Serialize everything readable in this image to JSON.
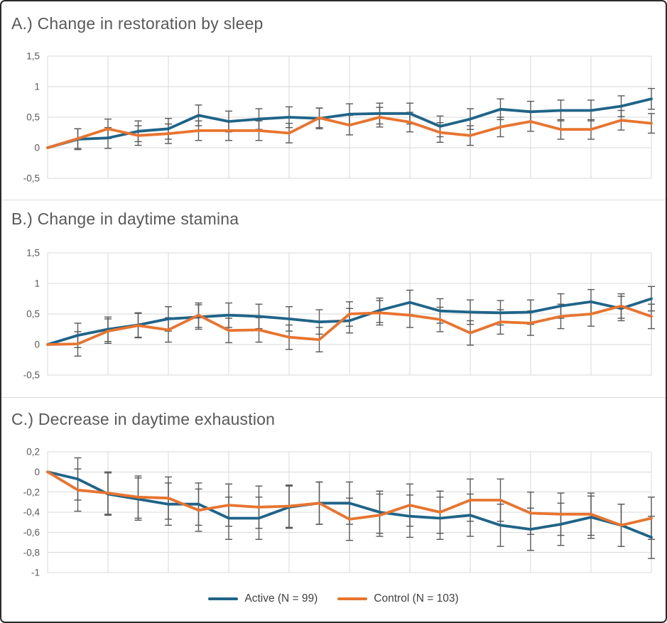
{
  "frame": {
    "background": "#ffffff",
    "border_color": "#2a2a2a"
  },
  "colors": {
    "active_line": "#1F6488",
    "control_line": "#E8742F",
    "error_bar": "#595959",
    "gridline": "#d9d9d9",
    "title_text": "#595959",
    "tick_text": "#595959",
    "legend_text": "#404040"
  },
  "legend": {
    "position": "bottom-center",
    "items": [
      {
        "label": "Active (N = 99)",
        "color": "#1F6488"
      },
      {
        "label": "Control (N = 103)",
        "color": "#E8742F"
      }
    ]
  },
  "chart_data": [
    {
      "type": "line",
      "title": "A.) Change in restoration by sleep",
      "xlabel": "",
      "ylabel": "",
      "x": [
        0,
        1,
        2,
        3,
        4,
        5,
        6,
        7,
        8,
        9,
        10,
        11,
        12,
        13,
        14,
        15,
        16,
        17,
        18,
        19,
        20
      ],
      "x_tick_labels_visible": false,
      "grid": true,
      "error_bars": true,
      "ylim": [
        -0.5,
        1.5
      ],
      "yticks": [
        1.5,
        1,
        0.5,
        0,
        -0.5
      ],
      "ytick_labels": [
        "1,5",
        "1",
        "0,5",
        "0",
        "-0,5"
      ],
      "series": [
        {
          "name": "Active (N = 99)",
          "color": "#1F6488",
          "err": 0.17,
          "values": [
            0,
            0.14,
            0.16,
            0.27,
            0.31,
            0.53,
            0.43,
            0.47,
            0.5,
            0.48,
            0.55,
            0.56,
            0.56,
            0.35,
            0.47,
            0.63,
            0.59,
            0.61,
            0.61,
            0.68,
            0.8
          ]
        },
        {
          "name": "Control (N = 103)",
          "color": "#E8742F",
          "err": 0.16,
          "values": [
            0,
            0.15,
            0.31,
            0.2,
            0.23,
            0.28,
            0.28,
            0.28,
            0.24,
            0.49,
            0.37,
            0.5,
            0.42,
            0.25,
            0.2,
            0.34,
            0.43,
            0.3,
            0.3,
            0.45,
            0.4
          ]
        }
      ]
    },
    {
      "type": "line",
      "title": "B.) Change in daytime stamina",
      "xlabel": "",
      "ylabel": "",
      "x": [
        0,
        1,
        2,
        3,
        4,
        5,
        6,
        7,
        8,
        9,
        10,
        11,
        12,
        13,
        14,
        15,
        16,
        17,
        18,
        19,
        20
      ],
      "x_tick_labels_visible": false,
      "grid": true,
      "error_bars": true,
      "ylim": [
        -0.5,
        1.5
      ],
      "yticks": [
        1.5,
        1,
        0.5,
        0,
        -0.5
      ],
      "ytick_labels": [
        "1,5",
        "1",
        "0,5",
        "0",
        "-0,5"
      ],
      "series": [
        {
          "name": "Active (N = 99)",
          "color": "#1F6488",
          "err": 0.2,
          "values": [
            0,
            0.15,
            0.25,
            0.32,
            0.42,
            0.45,
            0.48,
            0.46,
            0.42,
            0.37,
            0.39,
            0.56,
            0.69,
            0.55,
            0.53,
            0.52,
            0.53,
            0.63,
            0.7,
            0.59,
            0.75
          ]
        },
        {
          "name": "Control (N = 103)",
          "color": "#E8742F",
          "err": 0.2,
          "values": [
            0,
            0.01,
            0.22,
            0.31,
            0.24,
            0.48,
            0.23,
            0.24,
            0.12,
            0.08,
            0.5,
            0.52,
            0.48,
            0.41,
            0.19,
            0.37,
            0.35,
            0.46,
            0.5,
            0.63,
            0.46
          ]
        }
      ]
    },
    {
      "type": "line",
      "title": "C.) Decrease in daytime exhaustion",
      "xlabel": "",
      "ylabel": "",
      "x": [
        0,
        1,
        2,
        3,
        4,
        5,
        6,
        7,
        8,
        9,
        10,
        11,
        12,
        13,
        14,
        15,
        16,
        17,
        18,
        19,
        20
      ],
      "x_tick_labels_visible": false,
      "grid": true,
      "error_bars": true,
      "ylim": [
        -1,
        0.2
      ],
      "yticks": [
        0.2,
        0,
        -0.2,
        -0.4,
        -0.6,
        -0.8,
        -1
      ],
      "ytick_labels": [
        "0,2",
        "0",
        "-0,2",
        "-0,4",
        "-0,6",
        "-0,8",
        "-1"
      ],
      "series": [
        {
          "name": "Active (N = 99)",
          "color": "#1F6488",
          "err": 0.21,
          "values": [
            0,
            -0.07,
            -0.22,
            -0.27,
            -0.32,
            -0.32,
            -0.46,
            -0.46,
            -0.35,
            -0.31,
            -0.31,
            -0.4,
            -0.44,
            -0.46,
            -0.43,
            -0.53,
            -0.57,
            -0.52,
            -0.45,
            -0.53,
            -0.65
          ]
        },
        {
          "name": "Control (N = 103)",
          "color": "#E8742F",
          "err": 0.21,
          "values": [
            0,
            -0.18,
            -0.21,
            -0.25,
            -0.26,
            -0.38,
            -0.33,
            -0.35,
            -0.34,
            -0.31,
            -0.47,
            -0.43,
            -0.33,
            -0.4,
            -0.28,
            -0.28,
            -0.41,
            -0.42,
            -0.42,
            -0.53,
            -0.46
          ]
        }
      ]
    }
  ]
}
